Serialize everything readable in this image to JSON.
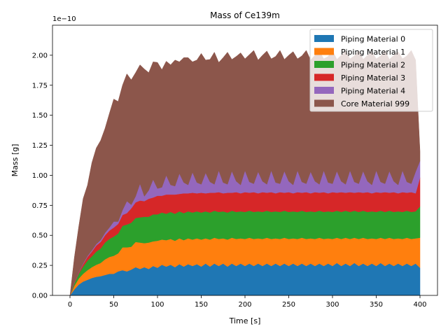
{
  "chart_data": {
    "type": "area",
    "stacked": true,
    "title": "Mass of Ce139m",
    "xlabel": "Time [s]",
    "ylabel": "Mass [g]",
    "scale_label": "1e−10",
    "xlim": [
      -20,
      420
    ],
    "ylim": [
      0,
      2.25
    ],
    "xticks": [
      0,
      50,
      100,
      150,
      200,
      250,
      300,
      350,
      400
    ],
    "yticks": [
      0.0,
      0.25,
      0.5,
      0.75,
      1.0,
      1.25,
      1.5,
      1.75,
      2.0
    ],
    "ytick_labels": [
      "0.00",
      "0.25",
      "0.50",
      "0.75",
      "1.00",
      "1.25",
      "1.50",
      "1.75",
      "2.00"
    ],
    "legend_position": "top-right",
    "time_step": 5,
    "x": [
      0,
      5,
      10,
      15,
      20,
      25,
      30,
      35,
      40,
      45,
      50,
      55,
      60,
      65,
      70,
      75,
      80,
      85,
      90,
      95,
      100,
      105,
      110,
      115,
      120,
      125,
      130,
      135,
      140,
      145,
      150,
      155,
      160,
      165,
      170,
      175,
      180,
      185,
      190,
      195,
      200,
      205,
      210,
      215,
      220,
      225,
      230,
      235,
      240,
      245,
      250,
      255,
      260,
      265,
      270,
      275,
      280,
      285,
      290,
      295,
      300,
      305,
      310,
      315,
      320,
      325,
      330,
      335,
      340,
      345,
      350,
      355,
      360,
      365,
      370,
      375,
      380,
      385,
      390,
      395,
      400
    ],
    "series": [
      {
        "name": "Piping Material 0",
        "color": "#1f77b4",
        "values": [
          0,
          0.05,
          0.09,
          0.115,
          0.13,
          0.145,
          0.155,
          0.16,
          0.17,
          0.18,
          0.18,
          0.2,
          0.21,
          0.2,
          0.215,
          0.235,
          0.22,
          0.235,
          0.22,
          0.245,
          0.23,
          0.255,
          0.24,
          0.255,
          0.235,
          0.26,
          0.24,
          0.26,
          0.245,
          0.26,
          0.24,
          0.265,
          0.24,
          0.265,
          0.245,
          0.265,
          0.24,
          0.265,
          0.245,
          0.265,
          0.245,
          0.265,
          0.245,
          0.265,
          0.245,
          0.265,
          0.245,
          0.265,
          0.245,
          0.265,
          0.245,
          0.265,
          0.245,
          0.265,
          0.245,
          0.265,
          0.245,
          0.265,
          0.245,
          0.265,
          0.245,
          0.27,
          0.245,
          0.265,
          0.245,
          0.27,
          0.245,
          0.265,
          0.245,
          0.265,
          0.245,
          0.27,
          0.245,
          0.265,
          0.245,
          0.265,
          0.245,
          0.265,
          0.245,
          0.265,
          0.23
        ]
      },
      {
        "name": "Piping Material 1",
        "color": "#ff7f0e",
        "values": [
          0,
          0.03,
          0.05,
          0.065,
          0.08,
          0.09,
          0.1,
          0.11,
          0.13,
          0.14,
          0.15,
          0.15,
          0.19,
          0.2,
          0.19,
          0.21,
          0.22,
          0.2,
          0.22,
          0.205,
          0.225,
          0.21,
          0.22,
          0.215,
          0.22,
          0.215,
          0.22,
          0.215,
          0.22,
          0.215,
          0.225,
          0.21,
          0.225,
          0.215,
          0.225,
          0.21,
          0.225,
          0.215,
          0.225,
          0.21,
          0.225,
          0.215,
          0.225,
          0.21,
          0.225,
          0.215,
          0.225,
          0.21,
          0.225,
          0.215,
          0.225,
          0.21,
          0.225,
          0.215,
          0.225,
          0.21,
          0.225,
          0.215,
          0.225,
          0.21,
          0.225,
          0.21,
          0.225,
          0.215,
          0.225,
          0.21,
          0.225,
          0.215,
          0.225,
          0.21,
          0.225,
          0.21,
          0.225,
          0.215,
          0.225,
          0.21,
          0.225,
          0.215,
          0.225,
          0.21,
          0.25
        ]
      },
      {
        "name": "Piping Material 2",
        "color": "#2ca02c",
        "values": [
          0,
          0.02,
          0.04,
          0.06,
          0.08,
          0.09,
          0.11,
          0.12,
          0.14,
          0.15,
          0.16,
          0.165,
          0.18,
          0.19,
          0.2,
          0.2,
          0.21,
          0.22,
          0.215,
          0.225,
          0.22,
          0.225,
          0.22,
          0.225,
          0.225,
          0.225,
          0.225,
          0.225,
          0.225,
          0.225,
          0.225,
          0.225,
          0.225,
          0.225,
          0.225,
          0.225,
          0.225,
          0.225,
          0.225,
          0.225,
          0.225,
          0.225,
          0.225,
          0.225,
          0.225,
          0.225,
          0.225,
          0.225,
          0.225,
          0.225,
          0.225,
          0.225,
          0.225,
          0.225,
          0.225,
          0.225,
          0.225,
          0.225,
          0.225,
          0.225,
          0.225,
          0.225,
          0.225,
          0.225,
          0.225,
          0.225,
          0.225,
          0.225,
          0.225,
          0.225,
          0.225,
          0.225,
          0.225,
          0.225,
          0.225,
          0.225,
          0.225,
          0.225,
          0.225,
          0.225,
          0.26
        ]
      },
      {
        "name": "Piping Material 3",
        "color": "#d62728",
        "values": [
          0,
          0.005,
          0.01,
          0.02,
          0.03,
          0.04,
          0.05,
          0.055,
          0.06,
          0.07,
          0.075,
          0.08,
          0.09,
          0.095,
          0.12,
          0.13,
          0.14,
          0.13,
          0.15,
          0.14,
          0.155,
          0.14,
          0.16,
          0.145,
          0.16,
          0.145,
          0.165,
          0.15,
          0.165,
          0.15,
          0.165,
          0.15,
          0.165,
          0.15,
          0.165,
          0.15,
          0.165,
          0.15,
          0.165,
          0.15,
          0.165,
          0.15,
          0.165,
          0.15,
          0.165,
          0.15,
          0.165,
          0.15,
          0.165,
          0.15,
          0.165,
          0.15,
          0.165,
          0.15,
          0.165,
          0.15,
          0.165,
          0.15,
          0.165,
          0.15,
          0.165,
          0.15,
          0.165,
          0.15,
          0.165,
          0.15,
          0.165,
          0.15,
          0.165,
          0.15,
          0.165,
          0.15,
          0.165,
          0.15,
          0.165,
          0.15,
          0.165,
          0.15,
          0.165,
          0.15,
          0.24
        ]
      },
      {
        "name": "Piping Material 4",
        "color": "#9467bd",
        "values": [
          0,
          0.002,
          0.004,
          0.006,
          0.008,
          0.01,
          0.012,
          0.015,
          0.02,
          0.025,
          0.05,
          0.02,
          0.04,
          0.1,
          0.03,
          0.05,
          0.14,
          0.04,
          0.07,
          0.15,
          0.06,
          0.07,
          0.16,
          0.08,
          0.07,
          0.17,
          0.09,
          0.07,
          0.17,
          0.09,
          0.07,
          0.17,
          0.09,
          0.07,
          0.18,
          0.09,
          0.07,
          0.18,
          0.09,
          0.07,
          0.18,
          0.09,
          0.07,
          0.18,
          0.09,
          0.07,
          0.18,
          0.09,
          0.07,
          0.18,
          0.09,
          0.07,
          0.18,
          0.09,
          0.07,
          0.18,
          0.09,
          0.07,
          0.18,
          0.09,
          0.07,
          0.18,
          0.09,
          0.07,
          0.18,
          0.09,
          0.07,
          0.18,
          0.09,
          0.07,
          0.18,
          0.09,
          0.07,
          0.18,
          0.09,
          0.07,
          0.18,
          0.09,
          0.07,
          0.18,
          0.14
        ]
      },
      {
        "name": "Core Material 999",
        "color": "#8c564b",
        "values": [
          0,
          0.21,
          0.38,
          0.54,
          0.59,
          0.73,
          0.8,
          0.83,
          0.87,
          0.95,
          1.02,
          1.0,
          1.04,
          1.06,
          1.04,
          1.03,
          0.99,
          1.06,
          0.98,
          0.98,
          1.05,
          0.98,
          0.95,
          1.0,
          1.05,
          0.93,
          1.04,
          1.06,
          0.92,
          1.02,
          1.09,
          0.94,
          1.02,
          1.1,
          0.9,
          1.04,
          1.1,
          0.93,
          1.04,
          1.1,
          0.93,
          1.06,
          1.11,
          0.93,
          1.05,
          1.11,
          0.93,
          1.05,
          1.11,
          0.93,
          1.05,
          1.11,
          0.93,
          1.05,
          1.11,
          0.93,
          1.05,
          1.11,
          0.93,
          1.05,
          1.11,
          0.93,
          1.05,
          1.11,
          0.93,
          1.05,
          1.11,
          0.93,
          1.05,
          1.11,
          0.93,
          1.05,
          1.11,
          0.93,
          1.05,
          1.11,
          0.93,
          1.05,
          1.11,
          0.93,
          0.08
        ]
      }
    ]
  }
}
